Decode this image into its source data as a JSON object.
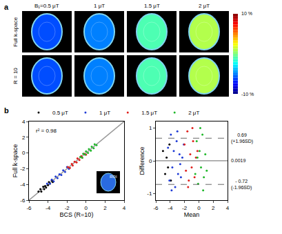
{
  "image_panel": {
    "letter": "a",
    "columns": [
      "B₁=0.5 μT",
      "1 μT",
      "1.5 μT",
      "2 μT"
    ],
    "rows": [
      {
        "label": "Full k-space",
        "values": [
          -6,
          -5,
          -1,
          1
        ]
      },
      {
        "label": "R = 10",
        "values": [
          -6,
          -5,
          -1,
          1
        ]
      }
    ],
    "colorbar": {
      "range": [
        -10,
        10
      ],
      "top_label": "10 %",
      "bottom_label": "-10 %"
    }
  },
  "chart_data": [
    {
      "type": "scatter",
      "letter": "b",
      "x_label": "BCS (R=10)",
      "y_label": "Full k-space",
      "annotation": "r² = 0.98",
      "inset_label": "ROI",
      "legend": "top",
      "xlim": [
        -6,
        4
      ],
      "xticks": [
        -6,
        -4,
        -2,
        0,
        2,
        4
      ],
      "ylim": [
        -6,
        4
      ],
      "yticks": [
        -6,
        -4,
        -2,
        0,
        2,
        4
      ],
      "identity_line": {
        "x": [
          -6,
          4
        ],
        "y": [
          -6,
          4
        ],
        "color": "#999999"
      },
      "series": [
        {
          "name": "0.5 μT",
          "color": "#000000",
          "x": [
            -5.0,
            -4.8,
            -4.7,
            -4.5,
            -4.4,
            -4.3,
            -4.2,
            -4.0,
            -3.9,
            -3.8,
            -3.6,
            -3.5
          ],
          "values": [
            -4.9,
            -4.6,
            -4.9,
            -4.3,
            -4.6,
            -4.2,
            -4.4,
            -4.1,
            -3.7,
            -3.9,
            -3.5,
            -3.7
          ]
        },
        {
          "name": "1 μT",
          "color": "#1f3bd6",
          "x": [
            -4.1,
            -3.8,
            -3.6,
            -3.4,
            -3.2,
            -3.0,
            -2.8,
            -2.6,
            -2.4,
            -2.2,
            -2.0,
            -1.8
          ],
          "values": [
            -3.9,
            -3.9,
            -3.4,
            -3.6,
            -3.0,
            -3.2,
            -2.7,
            -2.8,
            -2.2,
            -2.4,
            -1.8,
            -2.0
          ]
        },
        {
          "name": "1.5 μT",
          "color": "#e0201c",
          "x": [
            -1.9,
            -1.7,
            -1.5,
            -1.4,
            -1.2,
            -1.0,
            -0.9,
            -0.7,
            -0.5,
            -0.4,
            -0.2,
            0.0
          ],
          "values": [
            -1.8,
            -1.9,
            -1.4,
            -1.6,
            -1.1,
            -1.2,
            -0.7,
            -0.9,
            -0.4,
            -0.6,
            -0.1,
            -0.2
          ]
        },
        {
          "name": "2 μT",
          "color": "#1fb82a",
          "x": [
            -0.6,
            -0.4,
            -0.3,
            -0.1,
            0.0,
            0.2,
            0.3,
            0.5,
            0.6,
            0.8,
            0.9,
            1.1
          ],
          "values": [
            -0.5,
            -0.6,
            -0.1,
            -0.2,
            0.2,
            0.0,
            0.5,
            0.3,
            0.8,
            0.6,
            1.1,
            1.0
          ]
        }
      ]
    },
    {
      "type": "scatter",
      "x_label": "Mean",
      "y_label": "Difference",
      "xlim": [
        -6,
        4
      ],
      "xticks": [
        -6,
        -4,
        -2,
        0,
        2,
        4
      ],
      "ylim": [
        -1.2,
        1.2
      ],
      "yticks": [
        -1,
        0,
        1
      ],
      "lines": [
        {
          "value": 0.69,
          "label": "0.69",
          "sublabel": "(+1.96SD)",
          "line_style": "dash"
        },
        {
          "value": 0.0019,
          "label": "0.0019",
          "line_style": "solid"
        },
        {
          "value": -0.72,
          "label": "- 0.72",
          "sublabel": "(-1.96SD)",
          "line_style": "dash"
        }
      ],
      "series": [
        {
          "name": "0.5 μT",
          "color": "#000000",
          "x": [
            -5.0,
            -4.7,
            -4.5,
            -4.3,
            -4.1,
            -3.9
          ],
          "values": [
            0.3,
            -0.4,
            0.1,
            -0.2,
            0.5,
            -0.6
          ]
        },
        {
          "name": "1 μT",
          "color": "#1f3bd6",
          "x": [
            -4.3,
            -4.1,
            -3.9,
            -3.7,
            -3.5,
            -3.3,
            -3.1,
            -2.9,
            -2.7,
            -2.5,
            -2.3,
            -2.1,
            -3.8,
            -3.0,
            -2.6
          ],
          "values": [
            0.4,
            -0.6,
            0.8,
            -0.2,
            0.3,
            -0.8,
            0.6,
            -0.4,
            0.2,
            -0.5,
            0.1,
            0.5,
            -0.9,
            0.9,
            -0.1
          ]
        },
        {
          "name": "1.5 μT",
          "color": "#e0201c",
          "x": [
            -2.0,
            -1.8,
            -1.6,
            -1.4,
            -1.2,
            -1.0,
            -0.8,
            -0.6,
            -0.4,
            -0.2,
            -1.5,
            -0.9
          ],
          "values": [
            0.5,
            -0.3,
            0.9,
            -0.6,
            0.2,
            -0.2,
            0.6,
            -0.5,
            0.1,
            0.3,
            -0.8,
            1.0
          ]
        },
        {
          "name": "2 μT",
          "color": "#1fb82a",
          "x": [
            -0.5,
            -0.3,
            -0.1,
            0.1,
            0.3,
            0.5,
            0.7,
            0.9,
            0.2,
            0.6,
            -0.2,
            1.1
          ],
          "values": [
            -0.4,
            0.6,
            -0.7,
            0.3,
            -0.2,
            0.8,
            -0.5,
            0.2,
            1.0,
            -0.9,
            0.1,
            -0.3
          ]
        }
      ]
    }
  ]
}
